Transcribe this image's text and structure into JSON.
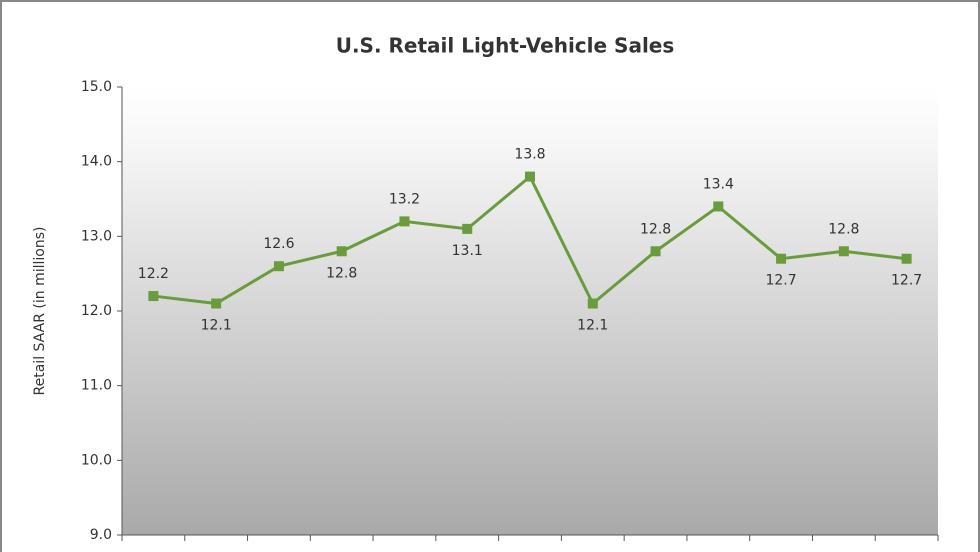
{
  "chart_data": {
    "type": "line",
    "title": "U.S. Retail Light-Vehicle Sales",
    "y_label": "Retail SAAR (in millions)",
    "categories": [
      null,
      null,
      null,
      null,
      null,
      null,
      null,
      null,
      null,
      null,
      null,
      null,
      null
    ],
    "series": [
      {
        "name": null,
        "color": "#6a9b3c",
        "values": [
          12.2,
          12.1,
          12.6,
          12.8,
          13.2,
          13.1,
          13.8,
          12.1,
          12.8,
          13.4,
          12.7,
          12.8,
          12.7
        ]
      }
    ],
    "ylim": [
      9,
      15
    ],
    "yticks": [
      {
        "value": 9,
        "label": "9.0"
      },
      {
        "value": 10,
        "label": "10.0"
      },
      {
        "value": 11,
        "label": "11.0"
      },
      {
        "value": 12,
        "label": "12.0"
      },
      {
        "value": 13,
        "label": "13.0"
      },
      {
        "value": 14,
        "label": "14.0"
      },
      {
        "value": 15,
        "label": "15.0"
      }
    ],
    "grid": false
  }
}
